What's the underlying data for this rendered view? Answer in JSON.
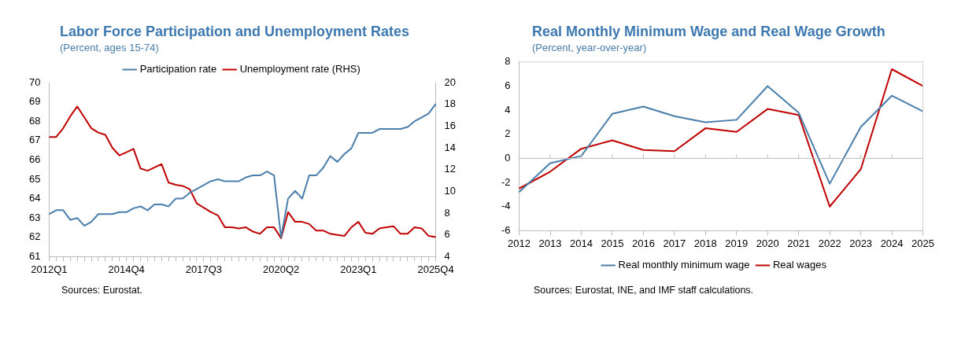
{
  "chart_data": [
    {
      "type": "line",
      "title": "Labor Force Participation and Unemployment Rates",
      "subtitle": "(Percent, ages 15-74)",
      "categories": [
        "2012Q1",
        null,
        null,
        null,
        null,
        null,
        null,
        null,
        null,
        null,
        null,
        "2014Q4",
        null,
        null,
        null,
        null,
        null,
        null,
        null,
        null,
        null,
        null,
        "2017Q3",
        null,
        null,
        null,
        null,
        null,
        null,
        null,
        null,
        null,
        null,
        "2020Q2",
        null,
        null,
        null,
        null,
        null,
        null,
        null,
        null,
        null,
        null,
        "2023Q1",
        null,
        null,
        null,
        null,
        null,
        null,
        null,
        null,
        null,
        null,
        "2025Q4"
      ],
      "series": [
        {
          "name": "Participation rate",
          "color": "#4a7eab",
          "values": [
            63.2,
            63.4,
            63.4,
            62.9,
            63.0,
            62.6,
            62.8,
            63.2,
            63.2,
            63.2,
            63.3,
            63.3,
            63.5,
            63.6,
            63.4,
            63.7,
            63.7,
            63.6,
            64.0,
            64.0,
            64.3,
            64.5,
            64.7,
            64.9,
            65.0,
            64.9,
            64.9,
            64.9,
            65.1,
            65.2,
            65.2,
            65.4,
            65.2,
            62.0,
            64.0,
            64.4,
            64.0,
            65.2,
            65.2,
            65.6,
            66.2,
            65.9,
            66.3,
            66.6,
            67.4,
            67.4,
            67.4,
            67.6,
            67.6,
            67.6,
            67.6,
            67.7,
            68.0,
            68.2,
            68.4,
            68.9
          ]
        },
        {
          "name": "Unemployment rate (RHS)",
          "color": "#c00000",
          "axis": "y2",
          "values": [
            15.0,
            15.0,
            15.8,
            16.9,
            17.8,
            16.8,
            15.8,
            15.4,
            15.2,
            14.0,
            13.3,
            13.6,
            13.9,
            12.1,
            11.9,
            12.2,
            12.5,
            10.8,
            10.6,
            10.5,
            10.2,
            8.9,
            8.5,
            8.1,
            7.8,
            6.7,
            6.7,
            6.6,
            6.7,
            6.3,
            6.1,
            6.7,
            6.7,
            5.7,
            8.1,
            7.2,
            7.2,
            7.0,
            6.4,
            6.4,
            6.1,
            6.0,
            5.9,
            6.7,
            7.2,
            6.2,
            6.1,
            6.6,
            6.7,
            6.8,
            6.1,
            6.1,
            6.7,
            6.6,
            5.9,
            5.8
          ]
        }
      ],
      "ylim": [
        61,
        70
      ],
      "yticks": [
        61,
        62,
        63,
        64,
        65,
        66,
        67,
        68,
        69,
        70
      ],
      "y2lim": [
        4,
        20
      ],
      "y2ticks": [
        4,
        6,
        8,
        10,
        12,
        14,
        16,
        18,
        20
      ],
      "grid": false,
      "legend": "top",
      "marker": "none",
      "annotations": [
        "Sources: Eurostat."
      ]
    },
    {
      "type": "line",
      "title": "Real Monthly Minimum Wage and Real Wage Growth",
      "subtitle": "(Percent, year-over-year)",
      "categories": [
        "2012",
        "2013",
        "2014",
        "2015",
        "2016",
        "2017",
        "2018",
        "2019",
        "2020",
        "2021",
        "2022",
        "2023",
        "2024",
        "2025"
      ],
      "series": [
        {
          "name": "Real monthly minimum wage",
          "color": "#4a7eab",
          "values": [
            -2.8,
            -0.4,
            0.2,
            3.7,
            4.3,
            3.5,
            3.0,
            3.2,
            6.0,
            3.8,
            -2.1,
            2.6,
            5.2,
            3.9
          ]
        },
        {
          "name": "Real wages",
          "color": "#c00000",
          "values": [
            -2.5,
            -1.1,
            0.8,
            1.5,
            0.7,
            0.6,
            2.5,
            2.2,
            4.1,
            3.6,
            -4.0,
            -0.9,
            7.4,
            6.0
          ]
        }
      ],
      "ylim": [
        -6,
        8
      ],
      "yticks": [
        -6,
        -4,
        -2,
        0,
        2,
        4,
        6,
        8
      ],
      "ref_lines": [
        {
          "axis": "y",
          "value": 0,
          "color": "#bbbbbb"
        }
      ],
      "grid": false,
      "legend": "bottom",
      "marker": "none",
      "annotations": [
        "Sources: Eurostat, INE, and IMF staff calculations."
      ]
    }
  ]
}
